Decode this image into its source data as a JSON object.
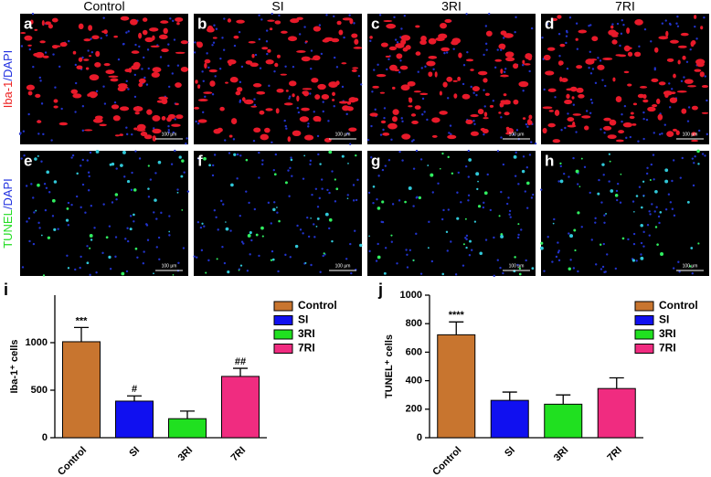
{
  "figure": {
    "columns": [
      "Control",
      "SI",
      "3RI",
      "7RI"
    ],
    "panels": [
      "a",
      "b",
      "c",
      "d",
      "e",
      "f",
      "g",
      "h"
    ],
    "rows": [
      [
        "Iba-1",
        "/DAPI"
      ],
      [
        "TUNEL",
        "/DAPI"
      ]
    ],
    "scale_bar": "100 μm"
  },
  "chart_data": [
    {
      "type": "bar",
      "label": "i",
      "ylabel": "Iba-1⁺ cells",
      "categories": [
        "Control",
        "SI",
        "3RI",
        "7RI"
      ],
      "values": [
        1010,
        385,
        200,
        645
      ],
      "errors": [
        150,
        55,
        80,
        85
      ],
      "annotations": [
        "***",
        "#",
        null,
        "##"
      ],
      "colors": [
        "#c8752f",
        "#1010f0",
        "#20e020",
        "#f02c80"
      ],
      "ylim": [
        0,
        1500
      ],
      "yticks": [
        0,
        500,
        1000
      ],
      "legend": "upper right"
    },
    {
      "type": "bar",
      "label": "j",
      "ylabel": "TUNEL⁺ cells",
      "categories": [
        "Control",
        "SI",
        "3RI",
        "7RI"
      ],
      "values": [
        722,
        262,
        235,
        345
      ],
      "errors": [
        90,
        58,
        65,
        75
      ],
      "annotations": [
        "****",
        null,
        null,
        null
      ],
      "colors": [
        "#c8752f",
        "#1010f0",
        "#20e020",
        "#f02c80"
      ],
      "ylim": [
        0,
        1000
      ],
      "yticks": [
        0,
        200,
        400,
        600,
        800,
        1000
      ],
      "legend": "upper right"
    }
  ]
}
